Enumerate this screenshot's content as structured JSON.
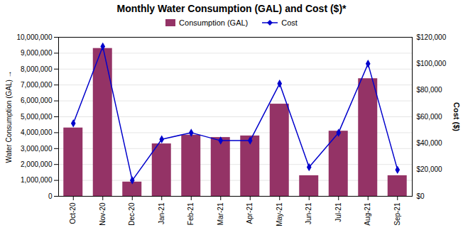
{
  "chart_data": {
    "type": "bar",
    "title": "Monthly Water Consumption (GAL) and Cost ($)*",
    "categories": [
      "Oct-20",
      "Nov-20",
      "Dec-20",
      "Jan-21",
      "Feb-21",
      "Mar-21",
      "Apr-21",
      "May-21",
      "Jun-21",
      "Jul-21",
      "Aug-21",
      "Sep-21"
    ],
    "series": [
      {
        "name": "Consumption (GAL)",
        "type": "bar",
        "color": "#943366",
        "values": [
          4300000,
          9300000,
          900000,
          3300000,
          3850000,
          3700000,
          3800000,
          5800000,
          1300000,
          4100000,
          7400000,
          1300000
        ]
      },
      {
        "name": "Cost",
        "type": "line",
        "color": "#0000CC",
        "marker": "diamond",
        "axis": "y2",
        "values": [
          55000,
          113000,
          12000,
          43000,
          48000,
          42000,
          42000,
          85000,
          22000,
          48000,
          100000,
          20000
        ]
      }
    ],
    "ylabel": "Water Consumption (GAL)",
    "y2label": "Cost ($)",
    "ylim": [
      0,
      10000000
    ],
    "yticks": [
      0,
      {
        "value": 1000000,
        "label": "1,000,000"
      },
      {
        "value": 2000000,
        "label": "2,000,000"
      },
      {
        "value": 3000000,
        "label": "3,000,000"
      },
      {
        "value": 4000000,
        "label": "4,000,000"
      },
      {
        "value": 5000000,
        "label": "5,000,000"
      },
      {
        "value": 6000000,
        "label": "6,000,000"
      },
      {
        "value": 7000000,
        "label": "7,000,000"
      },
      {
        "value": 8000000,
        "label": "8,000,000"
      },
      {
        "value": 9000000,
        "label": "9,000,000"
      },
      {
        "value": 10000000,
        "label": "10,000,000"
      }
    ],
    "y2lim": [
      0,
      120000
    ],
    "y2ticks": [
      {
        "value": 0,
        "label": "$0"
      },
      {
        "value": 20000,
        "label": "$20,000"
      },
      {
        "value": 40000,
        "label": "$40,000"
      },
      {
        "value": 60000,
        "label": "$60,000"
      },
      {
        "value": 80000,
        "label": "$80,000"
      },
      {
        "value": 100000,
        "label": "$100,000"
      },
      {
        "value": 120000,
        "label": "$120,000"
      }
    ],
    "grid": true,
    "legend": "top"
  }
}
